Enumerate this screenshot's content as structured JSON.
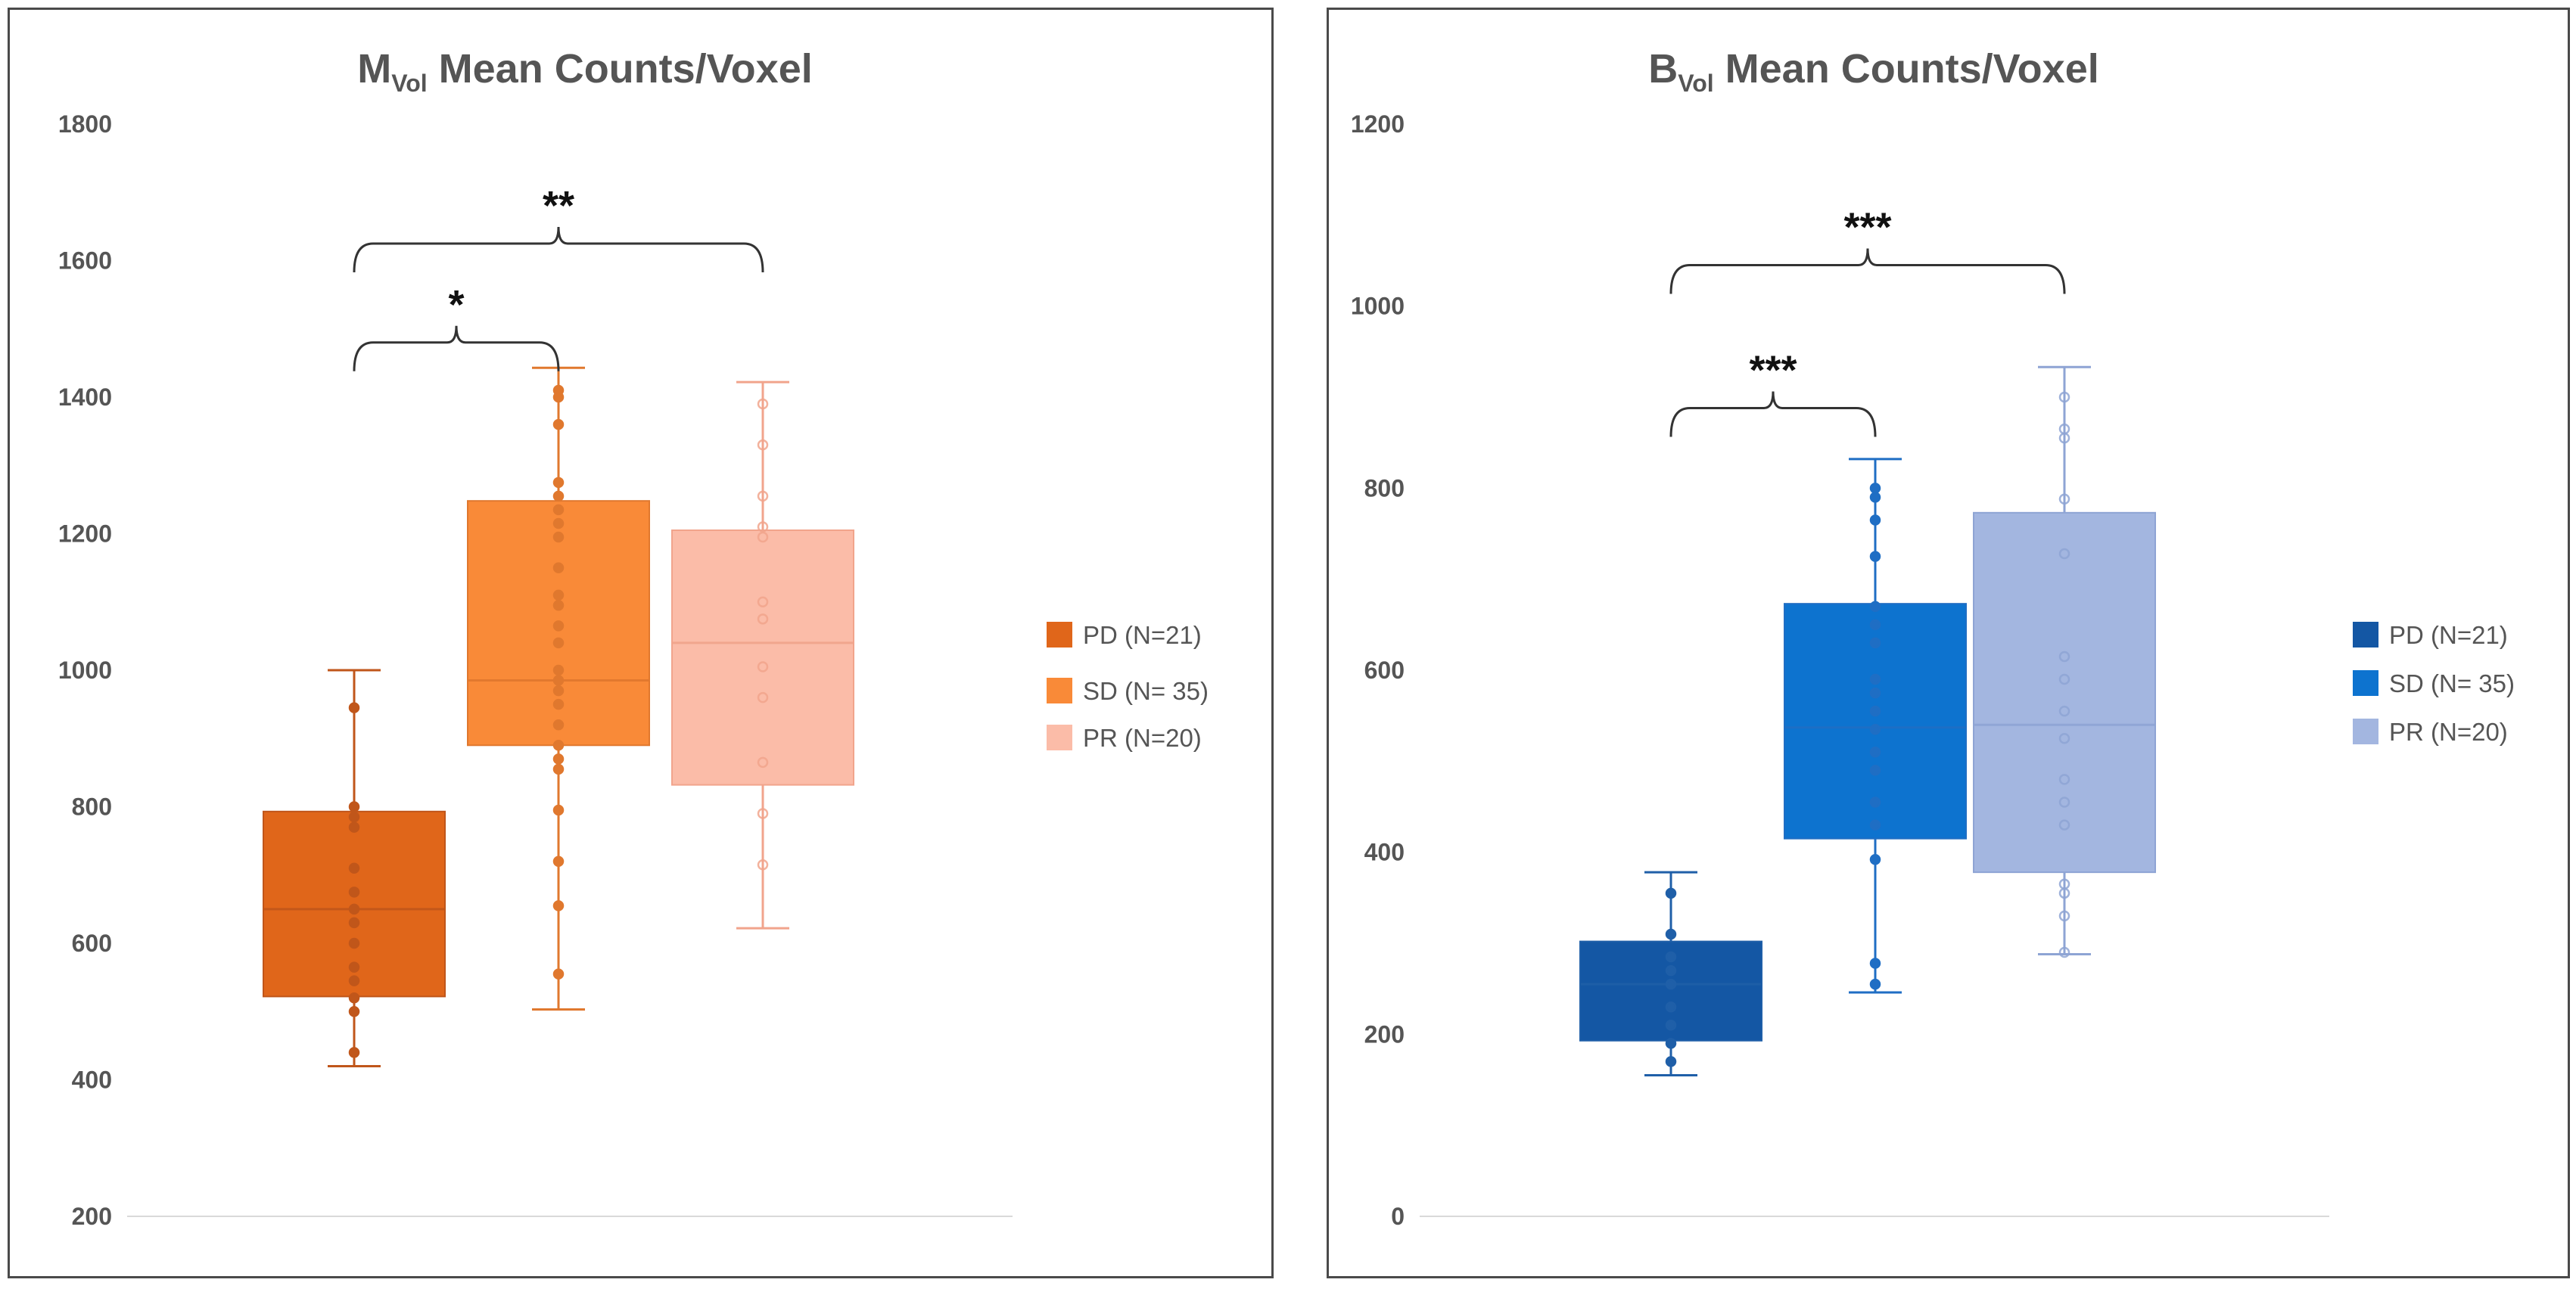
{
  "chart_data": [
    {
      "type": "box",
      "title_main": "M",
      "title_sub": "Vol",
      "title_rest": " Mean Counts/Voxel",
      "ylim": [
        200,
        1800
      ],
      "yticks": [
        200,
        400,
        600,
        800,
        1000,
        1200,
        1400,
        1600,
        1800
      ],
      "legend_position": "right",
      "series": [
        {
          "name": "PD (N=21)",
          "color": "#e0661a",
          "whisker_color": "#c0561a",
          "point_style": "filled",
          "min": 420,
          "q1": 522,
          "median": 650,
          "q3": 793,
          "max": 1000,
          "points": [
            440,
            500,
            520,
            545,
            565,
            600,
            630,
            650,
            675,
            710,
            770,
            785,
            800,
            945
          ]
        },
        {
          "name": "SD (N= 35)",
          "color": "#f98a38",
          "whisker_color": "#e0782e",
          "point_style": "filled",
          "min": 503,
          "q1": 890,
          "median": 985,
          "q3": 1248,
          "max": 1443,
          "points": [
            555,
            655,
            720,
            795,
            855,
            870,
            890,
            920,
            950,
            970,
            985,
            1000,
            1040,
            1065,
            1095,
            1110,
            1150,
            1195,
            1215,
            1235,
            1255,
            1275,
            1360,
            1400,
            1410
          ]
        },
        {
          "name": "PR (N=20)",
          "color": "#fbbca8",
          "whisker_color": "#f1a48c",
          "point_style": "hollow",
          "min": 622,
          "q1": 832,
          "median": 1040,
          "q3": 1205,
          "max": 1422,
          "points": [
            715,
            790,
            865,
            960,
            1005,
            1075,
            1100,
            1195,
            1210,
            1255,
            1330,
            1390
          ]
        }
      ],
      "annotations": [
        {
          "label": "*",
          "from": 0,
          "to": 1,
          "level": 1480
        },
        {
          "label": "**",
          "from": 0,
          "to": 2,
          "level": 1625
        }
      ]
    },
    {
      "type": "box",
      "title_main": "B",
      "title_sub": "Vol",
      "title_rest": " Mean Counts/Voxel",
      "ylim": [
        0,
        1200
      ],
      "yticks": [
        0,
        200,
        400,
        600,
        800,
        1000,
        1200
      ],
      "legend_position": "right",
      "series": [
        {
          "name": "PD (N=21)",
          "color": "#1457a4",
          "whisker_color": "#1f5fa8",
          "point_style": "filled",
          "min": 155,
          "q1": 193,
          "median": 255,
          "q3": 302,
          "max": 378,
          "points": [
            170,
            190,
            210,
            230,
            255,
            270,
            285,
            310,
            355
          ]
        },
        {
          "name": "SD (N= 35)",
          "color": "#0d73cf",
          "whisker_color": "#1f6ec4",
          "point_style": "filled",
          "min": 246,
          "q1": 415,
          "median": 537,
          "q3": 673,
          "max": 832,
          "points": [
            255,
            278,
            392,
            430,
            455,
            490,
            510,
            535,
            555,
            575,
            590,
            630,
            650,
            670,
            725,
            765,
            790,
            800
          ]
        },
        {
          "name": "PR (N=20)",
          "color": "#a3b6e0",
          "whisker_color": "#8ea4d4",
          "point_style": "hollow",
          "min": 288,
          "q1": 378,
          "median": 540,
          "q3": 773,
          "max": 933,
          "points": [
            290,
            330,
            355,
            365,
            430,
            455,
            480,
            525,
            555,
            590,
            615,
            728,
            788,
            855,
            865,
            900
          ]
        }
      ],
      "annotations": [
        {
          "label": "***",
          "from": 0,
          "to": 1,
          "level": 888
        },
        {
          "label": "***",
          "from": 0,
          "to": 2,
          "level": 1045
        }
      ]
    }
  ]
}
